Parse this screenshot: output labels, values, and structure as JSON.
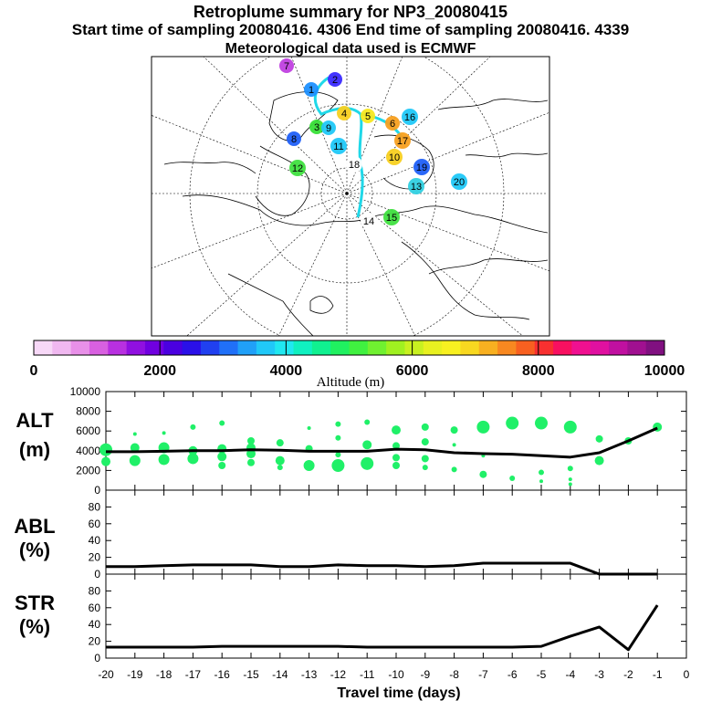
{
  "header": {
    "title": "Retroplume summary for NP3_20080415",
    "line2": "Start time of sampling 20080416. 4306     End time of sampling 20080416. 4339",
    "line3": "Meteorological data used is ECMWF"
  },
  "colorbar": {
    "ticks": [
      "0",
      "2000",
      "4000",
      "6000",
      "8000",
      "10000"
    ],
    "label": "Altitude (m)",
    "colors": [
      "#f7d8f7",
      "#f0b8f0",
      "#e890e8",
      "#d860e0",
      "#b830e0",
      "#9010e0",
      "#7000e0",
      "#4a00e0",
      "#2a10e8",
      "#2040f0",
      "#2070f8",
      "#20a0f8",
      "#20c8f8",
      "#20e8f0",
      "#10f0c0",
      "#10f090",
      "#20f060",
      "#40f040",
      "#70f030",
      "#a0f020",
      "#c8f020",
      "#e8f020",
      "#f8f020",
      "#f8d820",
      "#f8b020",
      "#f88820",
      "#f86020",
      "#f83030",
      "#f81060",
      "#f01090",
      "#e010a0",
      "#c010a0",
      "#a01090",
      "#801080"
    ]
  },
  "map": {
    "labels": [
      {
        "t": "1",
        "c": "#1e90ff"
      },
      {
        "t": "2",
        "c": "#3a2aff"
      },
      {
        "t": "3",
        "c": "#38e038"
      },
      {
        "t": "4",
        "c": "#f8d020"
      },
      {
        "t": "5",
        "c": "#f8e820"
      },
      {
        "t": "6",
        "c": "#f8a020"
      },
      {
        "t": "7",
        "c": "#c040e0"
      },
      {
        "t": "8",
        "c": "#2060f8"
      },
      {
        "t": "9",
        "c": "#20c8f8"
      },
      {
        "t": "10",
        "c": "#f8d020"
      },
      {
        "t": "11",
        "c": "#20c8f8"
      },
      {
        "t": "12",
        "c": "#40e040"
      },
      {
        "t": "13",
        "c": "#30d0e0"
      },
      {
        "t": "14",
        "c": "#ffffff"
      },
      {
        "t": "15",
        "c": "#40e040"
      },
      {
        "t": "16",
        "c": "#20c8f8"
      },
      {
        "t": "17",
        "c": "#f8a020"
      },
      {
        "t": "18",
        "c": "#ffffff"
      },
      {
        "t": "19",
        "c": "#2060f8"
      },
      {
        "t": "20",
        "c": "#20c8f8"
      }
    ]
  },
  "chart_data": [
    {
      "type": "line",
      "panel": "ALT",
      "ylabel_line1": "ALT",
      "ylabel_line2": "(m)",
      "ylim": [
        0,
        10000
      ],
      "yticks": [
        "0",
        "2000",
        "4000",
        "6000",
        "8000",
        "10000"
      ],
      "x": [
        -20,
        -19,
        -18,
        -17,
        -16,
        -15,
        -14,
        -13,
        -12,
        -11,
        -10,
        -9,
        -8,
        -7,
        -6,
        -5,
        -4,
        -3,
        -2,
        -1
      ],
      "values": [
        3900,
        3900,
        3950,
        4000,
        4000,
        4100,
        4050,
        3950,
        3950,
        3950,
        4150,
        4100,
        3800,
        3700,
        3650,
        3500,
        3350,
        3800,
        5000,
        6300
      ],
      "scatter": [
        {
          "x": -20,
          "y": 4100,
          "s": 7
        },
        {
          "x": -20,
          "y": 2900,
          "s": 5
        },
        {
          "x": -19,
          "y": 5700,
          "s": 2
        },
        {
          "x": -19,
          "y": 4300,
          "s": 5
        },
        {
          "x": -19,
          "y": 3000,
          "s": 6
        },
        {
          "x": -18,
          "y": 5800,
          "s": 2
        },
        {
          "x": -18,
          "y": 4300,
          "s": 6
        },
        {
          "x": -18,
          "y": 3100,
          "s": 6
        },
        {
          "x": -17,
          "y": 6400,
          "s": 3
        },
        {
          "x": -17,
          "y": 4000,
          "s": 5
        },
        {
          "x": -17,
          "y": 3200,
          "s": 6
        },
        {
          "x": -16,
          "y": 6800,
          "s": 3
        },
        {
          "x": -16,
          "y": 4200,
          "s": 5
        },
        {
          "x": -16,
          "y": 3400,
          "s": 5
        },
        {
          "x": -16,
          "y": 2500,
          "s": 4
        },
        {
          "x": -15,
          "y": 5000,
          "s": 4
        },
        {
          "x": -15,
          "y": 4300,
          "s": 5
        },
        {
          "x": -15,
          "y": 3700,
          "s": 5
        },
        {
          "x": -15,
          "y": 2800,
          "s": 4
        },
        {
          "x": -14,
          "y": 4800,
          "s": 4
        },
        {
          "x": -14,
          "y": 3000,
          "s": 5
        },
        {
          "x": -14,
          "y": 2300,
          "s": 3
        },
        {
          "x": -13,
          "y": 6300,
          "s": 2
        },
        {
          "x": -13,
          "y": 4200,
          "s": 4
        },
        {
          "x": -13,
          "y": 2500,
          "s": 6
        },
        {
          "x": -12,
          "y": 6700,
          "s": 3
        },
        {
          "x": -12,
          "y": 5300,
          "s": 3
        },
        {
          "x": -12,
          "y": 3600,
          "s": 3
        },
        {
          "x": -12,
          "y": 2500,
          "s": 7
        },
        {
          "x": -11,
          "y": 6900,
          "s": 3
        },
        {
          "x": -11,
          "y": 4600,
          "s": 5
        },
        {
          "x": -11,
          "y": 2700,
          "s": 7
        },
        {
          "x": -10,
          "y": 6100,
          "s": 5
        },
        {
          "x": -10,
          "y": 4500,
          "s": 4
        },
        {
          "x": -10,
          "y": 3300,
          "s": 4
        },
        {
          "x": -10,
          "y": 2500,
          "s": 4
        },
        {
          "x": -9,
          "y": 6400,
          "s": 4
        },
        {
          "x": -9,
          "y": 4900,
          "s": 4
        },
        {
          "x": -9,
          "y": 3200,
          "s": 4
        },
        {
          "x": -9,
          "y": 2300,
          "s": 3
        },
        {
          "x": -8,
          "y": 6100,
          "s": 4
        },
        {
          "x": -8,
          "y": 4600,
          "s": 2
        },
        {
          "x": -8,
          "y": 2100,
          "s": 3
        },
        {
          "x": -7,
          "y": 6400,
          "s": 7
        },
        {
          "x": -7,
          "y": 3500,
          "s": 2
        },
        {
          "x": -7,
          "y": 1600,
          "s": 4
        },
        {
          "x": -6,
          "y": 6800,
          "s": 7
        },
        {
          "x": -6,
          "y": 1200,
          "s": 3
        },
        {
          "x": -5,
          "y": 6800,
          "s": 7
        },
        {
          "x": -5,
          "y": 1800,
          "s": 3
        },
        {
          "x": -5,
          "y": 900,
          "s": 2
        },
        {
          "x": -4,
          "y": 6400,
          "s": 7
        },
        {
          "x": -4,
          "y": 2200,
          "s": 3
        },
        {
          "x": -4,
          "y": 1100,
          "s": 2
        },
        {
          "x": -4,
          "y": 600,
          "s": 2
        },
        {
          "x": -3,
          "y": 5200,
          "s": 4
        },
        {
          "x": -3,
          "y": 3000,
          "s": 5
        },
        {
          "x": -2,
          "y": 5000,
          "s": 4
        },
        {
          "x": -1,
          "y": 6400,
          "s": 5
        }
      ]
    },
    {
      "type": "line",
      "panel": "ABL",
      "ylabel_line1": "ABL",
      "ylabel_line2": "(%)",
      "ylim": [
        0,
        100
      ],
      "yticks": [
        "0",
        "20",
        "40",
        "60",
        "80"
      ],
      "x": [
        -20,
        -19,
        -18,
        -17,
        -16,
        -15,
        -14,
        -13,
        -12,
        -11,
        -10,
        -9,
        -8,
        -7,
        -6,
        -5,
        -4,
        -3,
        -2,
        -1
      ],
      "values": [
        9,
        9,
        10,
        11,
        11,
        11,
        9,
        9,
        11,
        10,
        10,
        9,
        10,
        13,
        13,
        13,
        13,
        0,
        0,
        0
      ]
    },
    {
      "type": "line",
      "panel": "STR",
      "ylabel_line1": "STR",
      "ylabel_line2": "(%)",
      "ylim": [
        0,
        100
      ],
      "yticks": [
        "0",
        "20",
        "40",
        "60",
        "80"
      ],
      "x": [
        -20,
        -19,
        -18,
        -17,
        -16,
        -15,
        -14,
        -13,
        -12,
        -11,
        -10,
        -9,
        -8,
        -7,
        -6,
        -5,
        -4,
        -3,
        -2,
        -1
      ],
      "values": [
        13,
        13,
        13,
        13,
        14,
        14,
        14,
        14,
        14,
        13,
        13,
        13,
        13,
        13,
        13,
        14,
        26,
        37,
        10,
        63
      ],
      "xlabel": "Travel time (days)",
      "xticks": [
        "-20",
        "-19",
        "-18",
        "-17",
        "-16",
        "-15",
        "-14",
        "-13",
        "-12",
        "-11",
        "-10",
        "-9",
        "-8",
        "-7",
        "-6",
        "-5",
        "-4",
        "-3",
        "-2",
        "-1",
        "0"
      ]
    }
  ]
}
